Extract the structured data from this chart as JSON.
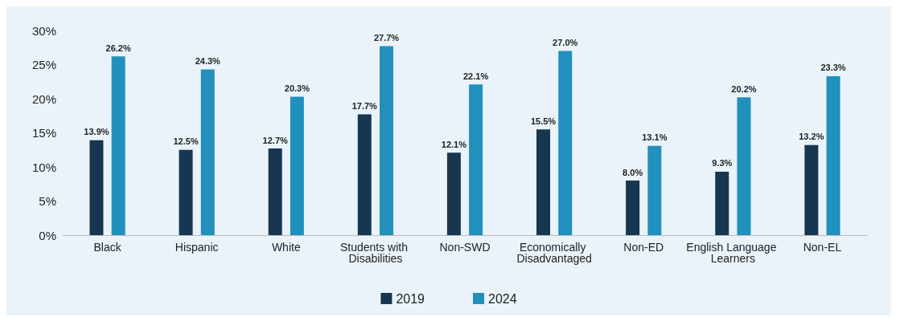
{
  "chart_data": {
    "type": "bar",
    "categories": [
      "Black",
      "Hispanic",
      "White",
      "Students with Disabilities",
      "Non-SWD",
      "Economically Disadvantaged",
      "Non-ED",
      "English Language Learners",
      "Non-EL"
    ],
    "series": [
      {
        "name": "2019",
        "color": "#17364f",
        "values": [
          13.9,
          12.5,
          12.7,
          17.7,
          12.1,
          15.5,
          8.0,
          9.3,
          13.2
        ],
        "value_labels": [
          "13.9%",
          "12.5%",
          "12.7%",
          "17.7%",
          "12.1%",
          "15.5%",
          "8.0%",
          "9.3%",
          "13.2%"
        ]
      },
      {
        "name": "2024",
        "color": "#2190bd",
        "values": [
          26.2,
          24.3,
          20.3,
          27.7,
          22.1,
          27.0,
          13.1,
          20.2,
          23.3
        ],
        "value_labels": [
          "26.2%",
          "24.3%",
          "20.3%",
          "27.7%",
          "22.1%",
          "27.0%",
          "13.1%",
          "20.2%",
          "23.3%"
        ]
      }
    ],
    "ylim": [
      0,
      30
    ],
    "yticks": [
      {
        "value": 0,
        "label": "0%"
      },
      {
        "value": 5,
        "label": "5%"
      },
      {
        "value": 10,
        "label": "10%"
      },
      {
        "value": 15,
        "label": "15%"
      },
      {
        "value": 20,
        "label": "20%"
      },
      {
        "value": 25,
        "label": "25%"
      },
      {
        "value": 30,
        "label": "30%"
      }
    ],
    "grid": false,
    "legend": "bottom"
  }
}
